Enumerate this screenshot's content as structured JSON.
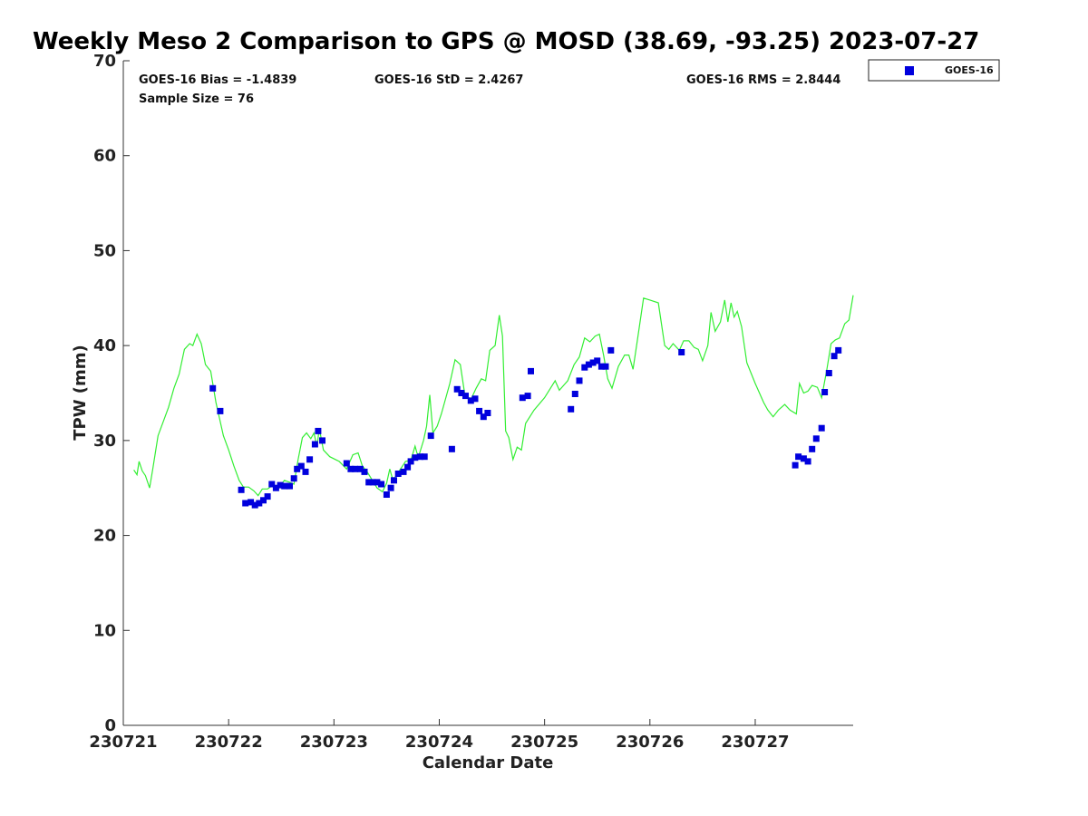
{
  "chart_data": {
    "type": "scatter",
    "title": "Weekly Meso 2 Comparison to GPS @ MOSD (38.69, -93.25) 2023-07-27",
    "xlabel": "Calendar Date",
    "ylabel": "TPW (mm)",
    "xlim": [
      230721,
      230727.93
    ],
    "ylim": [
      0,
      70
    ],
    "x_ticks": [
      230721,
      230722,
      230723,
      230724,
      230725,
      230726,
      230727
    ],
    "x_tick_labels": [
      "230721",
      "230722",
      "230723",
      "230724",
      "230725",
      "230726",
      "230727"
    ],
    "y_ticks": [
      0,
      10,
      20,
      30,
      40,
      50,
      60,
      70
    ],
    "y_tick_labels": [
      "0",
      "10",
      "20",
      "30",
      "40",
      "50",
      "60",
      "70"
    ],
    "legend": {
      "position": "outside-top-right",
      "entries": [
        "GOES-16"
      ]
    },
    "stats": {
      "bias": "GOES-16 Bias = -1.4839",
      "std": "GOES-16 StD = 2.4267",
      "rms": "GOES-16 RMS = 2.8444",
      "sample_size": "Sample Size = 76"
    },
    "series": [
      {
        "name": "GOES-16",
        "marker": "square",
        "color": "#0000dd",
        "points": [
          [
            230721.85,
            35.5
          ],
          [
            230721.92,
            33.1
          ],
          [
            230722.12,
            24.8
          ],
          [
            230722.16,
            23.4
          ],
          [
            230722.21,
            23.5
          ],
          [
            230722.25,
            23.2
          ],
          [
            230722.29,
            23.4
          ],
          [
            230722.33,
            23.7
          ],
          [
            230722.37,
            24.1
          ],
          [
            230722.41,
            25.4
          ],
          [
            230722.45,
            25.0
          ],
          [
            230722.49,
            25.3
          ],
          [
            230722.53,
            25.2
          ],
          [
            230722.58,
            25.2
          ],
          [
            230722.62,
            26.0
          ],
          [
            230722.65,
            27.0
          ],
          [
            230722.69,
            27.3
          ],
          [
            230722.73,
            26.7
          ],
          [
            230722.77,
            28.0
          ],
          [
            230722.82,
            29.6
          ],
          [
            230722.85,
            31.0
          ],
          [
            230722.89,
            30.0
          ],
          [
            230723.12,
            27.6
          ],
          [
            230723.16,
            27.0
          ],
          [
            230723.2,
            27.0
          ],
          [
            230723.25,
            27.0
          ],
          [
            230723.29,
            26.7
          ],
          [
            230723.33,
            25.6
          ],
          [
            230723.37,
            25.6
          ],
          [
            230723.41,
            25.6
          ],
          [
            230723.45,
            25.4
          ],
          [
            230723.5,
            24.3
          ],
          [
            230723.54,
            25.0
          ],
          [
            230723.57,
            25.8
          ],
          [
            230723.61,
            26.5
          ],
          [
            230723.66,
            26.7
          ],
          [
            230723.7,
            27.2
          ],
          [
            230723.73,
            27.8
          ],
          [
            230723.77,
            28.2
          ],
          [
            230723.82,
            28.3
          ],
          [
            230723.86,
            28.3
          ],
          [
            230723.92,
            30.5
          ],
          [
            230724.12,
            29.1
          ],
          [
            230724.17,
            35.4
          ],
          [
            230724.21,
            35.0
          ],
          [
            230724.25,
            34.7
          ],
          [
            230724.3,
            34.2
          ],
          [
            230724.34,
            34.4
          ],
          [
            230724.38,
            33.1
          ],
          [
            230724.42,
            32.5
          ],
          [
            230724.46,
            32.9
          ],
          [
            230724.79,
            34.5
          ],
          [
            230724.84,
            34.7
          ],
          [
            230724.87,
            37.3
          ],
          [
            230725.25,
            33.3
          ],
          [
            230725.29,
            34.9
          ],
          [
            230725.33,
            36.3
          ],
          [
            230725.38,
            37.7
          ],
          [
            230725.42,
            38.0
          ],
          [
            230725.46,
            38.2
          ],
          [
            230725.5,
            38.4
          ],
          [
            230725.54,
            37.8
          ],
          [
            230725.58,
            37.8
          ],
          [
            230725.63,
            39.5
          ],
          [
            230726.3,
            39.3
          ],
          [
            230727.38,
            27.4
          ],
          [
            230727.41,
            28.3
          ],
          [
            230727.46,
            28.1
          ],
          [
            230727.5,
            27.8
          ],
          [
            230727.54,
            29.1
          ],
          [
            230727.58,
            30.2
          ],
          [
            230727.63,
            31.3
          ],
          [
            230727.66,
            35.1
          ],
          [
            230727.7,
            37.1
          ],
          [
            230727.75,
            38.9
          ],
          [
            230727.79,
            39.5
          ]
        ]
      },
      {
        "name": "",
        "type": "line",
        "color": "#33ee33",
        "points": [
          [
            230721.1,
            26.9
          ],
          [
            230721.13,
            26.4
          ],
          [
            230721.15,
            27.8
          ],
          [
            230721.18,
            26.8
          ],
          [
            230721.21,
            26.3
          ],
          [
            230721.25,
            25.0
          ],
          [
            230721.28,
            27.0
          ],
          [
            230721.33,
            30.5
          ],
          [
            230721.38,
            32.0
          ],
          [
            230721.43,
            33.5
          ],
          [
            230721.48,
            35.5
          ],
          [
            230721.53,
            37.0
          ],
          [
            230721.58,
            39.6
          ],
          [
            230721.63,
            40.2
          ],
          [
            230721.66,
            40.0
          ],
          [
            230721.7,
            41.2
          ],
          [
            230721.74,
            40.2
          ],
          [
            230721.78,
            38.0
          ],
          [
            230721.83,
            37.3
          ],
          [
            230721.88,
            34.0
          ],
          [
            230721.95,
            30.5
          ],
          [
            230722.0,
            29.0
          ],
          [
            230722.05,
            27.3
          ],
          [
            230722.1,
            25.8
          ],
          [
            230722.14,
            25.1
          ],
          [
            230722.19,
            25.1
          ],
          [
            230722.24,
            24.7
          ],
          [
            230722.28,
            24.2
          ],
          [
            230722.32,
            24.9
          ],
          [
            230722.37,
            24.9
          ],
          [
            230722.42,
            25.3
          ],
          [
            230722.47,
            25.0
          ],
          [
            230722.53,
            25.8
          ],
          [
            230722.58,
            25.6
          ],
          [
            230722.62,
            25.4
          ],
          [
            230722.66,
            28.0
          ],
          [
            230722.7,
            30.3
          ],
          [
            230722.74,
            30.8
          ],
          [
            230722.78,
            30.2
          ],
          [
            230722.81,
            30.8
          ],
          [
            230722.84,
            29.3
          ],
          [
            230722.86,
            31.3
          ],
          [
            230722.9,
            29.0
          ],
          [
            230722.96,
            28.3
          ],
          [
            230723.05,
            27.8
          ],
          [
            230723.12,
            27.0
          ],
          [
            230723.18,
            28.5
          ],
          [
            230723.23,
            28.7
          ],
          [
            230723.27,
            27.3
          ],
          [
            230723.31,
            26.8
          ],
          [
            230723.36,
            25.9
          ],
          [
            230723.41,
            25.0
          ],
          [
            230723.46,
            24.6
          ],
          [
            230723.5,
            25.5
          ],
          [
            230723.53,
            27.0
          ],
          [
            230723.56,
            25.8
          ],
          [
            230723.62,
            26.8
          ],
          [
            230723.68,
            27.8
          ],
          [
            230723.73,
            27.9
          ],
          [
            230723.77,
            29.4
          ],
          [
            230723.8,
            28.2
          ],
          [
            230723.85,
            30.0
          ],
          [
            230723.88,
            31.5
          ],
          [
            230723.91,
            34.8
          ],
          [
            230723.94,
            30.8
          ],
          [
            230723.98,
            31.5
          ],
          [
            230724.02,
            32.8
          ],
          [
            230724.1,
            36.0
          ],
          [
            230724.15,
            38.5
          ],
          [
            230724.2,
            38.0
          ],
          [
            230724.24,
            35.0
          ],
          [
            230724.3,
            34.3
          ],
          [
            230724.35,
            35.5
          ],
          [
            230724.4,
            36.5
          ],
          [
            230724.44,
            36.3
          ],
          [
            230724.48,
            39.5
          ],
          [
            230724.53,
            40.0
          ],
          [
            230724.57,
            43.2
          ],
          [
            230724.6,
            41.0
          ],
          [
            230724.63,
            31.0
          ],
          [
            230724.66,
            30.3
          ],
          [
            230724.7,
            28.0
          ],
          [
            230724.74,
            29.3
          ],
          [
            230724.78,
            29.0
          ],
          [
            230724.82,
            31.8
          ],
          [
            230724.9,
            33.2
          ],
          [
            230725.0,
            34.5
          ],
          [
            230725.1,
            36.3
          ],
          [
            230725.14,
            35.3
          ],
          [
            230725.18,
            35.8
          ],
          [
            230725.22,
            36.3
          ],
          [
            230725.28,
            38.0
          ],
          [
            230725.33,
            38.8
          ],
          [
            230725.38,
            40.8
          ],
          [
            230725.43,
            40.4
          ],
          [
            230725.48,
            41.0
          ],
          [
            230725.52,
            41.2
          ],
          [
            230725.56,
            39.0
          ],
          [
            230725.6,
            36.5
          ],
          [
            230725.64,
            35.5
          ],
          [
            230725.7,
            37.8
          ],
          [
            230725.76,
            39.0
          ],
          [
            230725.8,
            39.0
          ],
          [
            230725.84,
            37.5
          ],
          [
            230725.88,
            40.5
          ],
          [
            230725.94,
            45.0
          ],
          [
            230726.0,
            44.8
          ],
          [
            230726.08,
            44.5
          ],
          [
            230726.14,
            40.0
          ],
          [
            230726.18,
            39.6
          ],
          [
            230726.22,
            40.2
          ],
          [
            230726.28,
            39.5
          ],
          [
            230726.32,
            40.5
          ],
          [
            230726.37,
            40.5
          ],
          [
            230726.42,
            39.8
          ],
          [
            230726.46,
            39.6
          ],
          [
            230726.5,
            38.4
          ],
          [
            230726.55,
            40.0
          ],
          [
            230726.58,
            43.5
          ],
          [
            230726.62,
            41.5
          ],
          [
            230726.67,
            42.5
          ],
          [
            230726.71,
            44.8
          ],
          [
            230726.74,
            42.5
          ],
          [
            230726.77,
            44.5
          ],
          [
            230726.8,
            43.0
          ],
          [
            230726.83,
            43.6
          ],
          [
            230726.87,
            42.0
          ],
          [
            230726.92,
            38.2
          ],
          [
            230727.0,
            36.0
          ],
          [
            230727.08,
            34.0
          ],
          [
            230727.12,
            33.2
          ],
          [
            230727.17,
            32.5
          ],
          [
            230727.22,
            33.2
          ],
          [
            230727.28,
            33.8
          ],
          [
            230727.33,
            33.2
          ],
          [
            230727.39,
            32.8
          ],
          [
            230727.42,
            36.0
          ],
          [
            230727.46,
            35.0
          ],
          [
            230727.5,
            35.2
          ],
          [
            230727.54,
            35.8
          ],
          [
            230727.59,
            35.6
          ],
          [
            230727.63,
            34.5
          ],
          [
            230727.68,
            37.5
          ],
          [
            230727.72,
            40.2
          ],
          [
            230727.76,
            40.6
          ],
          [
            230727.8,
            40.8
          ],
          [
            230727.85,
            42.3
          ],
          [
            230727.89,
            42.7
          ],
          [
            230727.93,
            45.3
          ]
        ]
      }
    ]
  }
}
